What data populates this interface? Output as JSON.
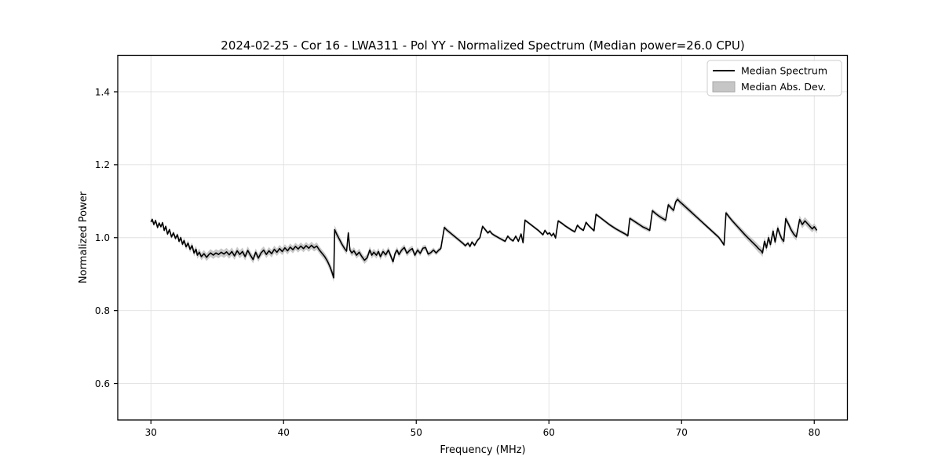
{
  "chart_data": {
    "type": "line",
    "title": "2024-02-25 - Cor 16 - LWA311 - Pol YY - Normalized Spectrum (Median power=26.0 CPU)",
    "xlabel": "Frequency (MHz)",
    "ylabel": "Normalized Power",
    "xlim": [
      27.5,
      82.5
    ],
    "ylim": [
      0.5,
      1.5
    ],
    "xticks": [
      30,
      40,
      50,
      60,
      70,
      80
    ],
    "yticks": [
      0.6,
      0.8,
      1.0,
      1.2,
      1.4
    ],
    "grid": true,
    "legend": {
      "position": "upper right",
      "entries": [
        {
          "label": "Median Spectrum",
          "type": "line",
          "color": "#000000"
        },
        {
          "label": "Median Abs. Dev.",
          "type": "patch",
          "color": "#c6c6c6"
        }
      ]
    },
    "colors": {
      "line": "#000000",
      "band": "#bfbfbf",
      "grid": "#e0e0e0",
      "spine": "#000000",
      "legend_border": "#cccccc"
    },
    "series_name": "Median Spectrum",
    "band_name": "Median Abs. Dev.",
    "points": [
      [
        30.0,
        1.043
      ],
      [
        30.1,
        1.05
      ],
      [
        30.22,
        1.036
      ],
      [
        30.35,
        1.047
      ],
      [
        30.5,
        1.028
      ],
      [
        30.62,
        1.04
      ],
      [
        30.75,
        1.03
      ],
      [
        30.88,
        1.041
      ],
      [
        31.0,
        1.02
      ],
      [
        31.12,
        1.031
      ],
      [
        31.25,
        1.01
      ],
      [
        31.4,
        1.022
      ],
      [
        31.55,
        1.002
      ],
      [
        31.7,
        1.013
      ],
      [
        31.85,
        0.998
      ],
      [
        32.0,
        1.008
      ],
      [
        32.12,
        0.99
      ],
      [
        32.25,
        1.0
      ],
      [
        32.38,
        0.982
      ],
      [
        32.5,
        0.992
      ],
      [
        32.65,
        0.975
      ],
      [
        32.8,
        0.985
      ],
      [
        32.95,
        0.968
      ],
      [
        33.1,
        0.978
      ],
      [
        33.25,
        0.958
      ],
      [
        33.4,
        0.968
      ],
      [
        33.5,
        0.952
      ],
      [
        33.65,
        0.96
      ],
      [
        33.8,
        0.948
      ],
      [
        34.0,
        0.956
      ],
      [
        34.2,
        0.946
      ],
      [
        34.35,
        0.953
      ],
      [
        34.5,
        0.958
      ],
      [
        34.7,
        0.952
      ],
      [
        34.9,
        0.958
      ],
      [
        35.1,
        0.954
      ],
      [
        35.3,
        0.96
      ],
      [
        35.5,
        0.955
      ],
      [
        35.7,
        0.961
      ],
      [
        35.9,
        0.953
      ],
      [
        36.1,
        0.962
      ],
      [
        36.3,
        0.95
      ],
      [
        36.5,
        0.964
      ],
      [
        36.7,
        0.954
      ],
      [
        36.9,
        0.962
      ],
      [
        37.1,
        0.948
      ],
      [
        37.3,
        0.965
      ],
      [
        37.5,
        0.952
      ],
      [
        37.7,
        0.94
      ],
      [
        37.9,
        0.96
      ],
      [
        38.1,
        0.944
      ],
      [
        38.3,
        0.958
      ],
      [
        38.5,
        0.966
      ],
      [
        38.7,
        0.954
      ],
      [
        38.9,
        0.964
      ],
      [
        39.1,
        0.956
      ],
      [
        39.3,
        0.968
      ],
      [
        39.5,
        0.96
      ],
      [
        39.7,
        0.97
      ],
      [
        39.9,
        0.962
      ],
      [
        40.1,
        0.972
      ],
      [
        40.3,
        0.964
      ],
      [
        40.5,
        0.974
      ],
      [
        40.7,
        0.967
      ],
      [
        40.9,
        0.976
      ],
      [
        41.1,
        0.969
      ],
      [
        41.3,
        0.977
      ],
      [
        41.5,
        0.97
      ],
      [
        41.7,
        0.978
      ],
      [
        41.9,
        0.971
      ],
      [
        42.1,
        0.979
      ],
      [
        42.3,
        0.972
      ],
      [
        42.5,
        0.977
      ],
      [
        42.7,
        0.966
      ],
      [
        42.9,
        0.957
      ],
      [
        43.1,
        0.948
      ],
      [
        43.3,
        0.936
      ],
      [
        43.5,
        0.92
      ],
      [
        43.65,
        0.905
      ],
      [
        43.78,
        0.89
      ],
      [
        43.85,
        1.022
      ],
      [
        44.0,
        1.01
      ],
      [
        44.2,
        0.996
      ],
      [
        44.4,
        0.982
      ],
      [
        44.6,
        0.97
      ],
      [
        44.75,
        0.963
      ],
      [
        44.88,
        1.013
      ],
      [
        45.0,
        0.966
      ],
      [
        45.15,
        0.958
      ],
      [
        45.3,
        0.964
      ],
      [
        45.5,
        0.952
      ],
      [
        45.7,
        0.96
      ],
      [
        45.9,
        0.948
      ],
      [
        46.1,
        0.938
      ],
      [
        46.3,
        0.945
      ],
      [
        46.5,
        0.966
      ],
      [
        46.65,
        0.952
      ],
      [
        46.8,
        0.96
      ],
      [
        47.0,
        0.952
      ],
      [
        47.15,
        0.962
      ],
      [
        47.3,
        0.948
      ],
      [
        47.5,
        0.962
      ],
      [
        47.7,
        0.953
      ],
      [
        47.9,
        0.966
      ],
      [
        48.1,
        0.948
      ],
      [
        48.25,
        0.934
      ],
      [
        48.4,
        0.956
      ],
      [
        48.55,
        0.966
      ],
      [
        48.7,
        0.954
      ],
      [
        48.9,
        0.966
      ],
      [
        49.1,
        0.973
      ],
      [
        49.3,
        0.957
      ],
      [
        49.5,
        0.965
      ],
      [
        49.7,
        0.97
      ],
      [
        49.9,
        0.952
      ],
      [
        50.1,
        0.966
      ],
      [
        50.3,
        0.957
      ],
      [
        50.5,
        0.971
      ],
      [
        50.7,
        0.973
      ],
      [
        50.9,
        0.955
      ],
      [
        51.1,
        0.959
      ],
      [
        51.3,
        0.966
      ],
      [
        51.5,
        0.958
      ],
      [
        51.7,
        0.966
      ],
      [
        51.85,
        0.97
      ],
      [
        52.0,
        1.002
      ],
      [
        52.12,
        1.028
      ],
      [
        52.3,
        1.021
      ],
      [
        52.5,
        1.015
      ],
      [
        52.7,
        1.009
      ],
      [
        52.9,
        1.003
      ],
      [
        53.1,
        0.997
      ],
      [
        53.3,
        0.991
      ],
      [
        53.5,
        0.985
      ],
      [
        53.7,
        0.978
      ],
      [
        53.9,
        0.985
      ],
      [
        54.05,
        0.976
      ],
      [
        54.2,
        0.988
      ],
      [
        54.4,
        0.979
      ],
      [
        54.6,
        0.992
      ],
      [
        54.8,
        1.0
      ],
      [
        55.0,
        1.031
      ],
      [
        55.2,
        1.022
      ],
      [
        55.4,
        1.013
      ],
      [
        55.55,
        1.018
      ],
      [
        55.7,
        1.011
      ],
      [
        55.9,
        1.006
      ],
      [
        56.1,
        1.002
      ],
      [
        56.3,
        0.998
      ],
      [
        56.5,
        0.994
      ],
      [
        56.7,
        0.99
      ],
      [
        56.9,
        1.004
      ],
      [
        57.1,
        0.996
      ],
      [
        57.3,
        0.991
      ],
      [
        57.5,
        1.004
      ],
      [
        57.7,
        0.99
      ],
      [
        57.9,
        1.01
      ],
      [
        58.05,
        0.986
      ],
      [
        58.2,
        1.048
      ],
      [
        58.45,
        1.041
      ],
      [
        58.7,
        1.034
      ],
      [
        58.95,
        1.027
      ],
      [
        59.2,
        1.02
      ],
      [
        59.4,
        1.013
      ],
      [
        59.55,
        1.008
      ],
      [
        59.7,
        1.02
      ],
      [
        59.9,
        1.01
      ],
      [
        60.05,
        1.013
      ],
      [
        60.2,
        1.005
      ],
      [
        60.35,
        1.012
      ],
      [
        60.5,
        0.999
      ],
      [
        60.7,
        1.046
      ],
      [
        60.95,
        1.04
      ],
      [
        61.2,
        1.033
      ],
      [
        61.45,
        1.027
      ],
      [
        61.7,
        1.021
      ],
      [
        61.95,
        1.016
      ],
      [
        62.15,
        1.034
      ],
      [
        62.35,
        1.026
      ],
      [
        62.6,
        1.02
      ],
      [
        62.8,
        1.042
      ],
      [
        63.0,
        1.033
      ],
      [
        63.2,
        1.026
      ],
      [
        63.4,
        1.019
      ],
      [
        63.55,
        1.064
      ],
      [
        63.8,
        1.057
      ],
      [
        64.05,
        1.05
      ],
      [
        64.3,
        1.043
      ],
      [
        64.55,
        1.036
      ],
      [
        64.8,
        1.03
      ],
      [
        65.05,
        1.024
      ],
      [
        65.3,
        1.019
      ],
      [
        65.55,
        1.014
      ],
      [
        65.8,
        1.009
      ],
      [
        65.95,
        1.005
      ],
      [
        66.1,
        1.053
      ],
      [
        66.35,
        1.047
      ],
      [
        66.6,
        1.041
      ],
      [
        66.85,
        1.035
      ],
      [
        67.1,
        1.029
      ],
      [
        67.35,
        1.025
      ],
      [
        67.6,
        1.02
      ],
      [
        67.8,
        1.074
      ],
      [
        68.05,
        1.066
      ],
      [
        68.3,
        1.059
      ],
      [
        68.55,
        1.053
      ],
      [
        68.8,
        1.048
      ],
      [
        69.0,
        1.09
      ],
      [
        69.2,
        1.082
      ],
      [
        69.4,
        1.075
      ],
      [
        69.55,
        1.098
      ],
      [
        69.7,
        1.105
      ],
      [
        69.85,
        1.099
      ],
      [
        70.1,
        1.091
      ],
      [
        70.4,
        1.081
      ],
      [
        70.7,
        1.071
      ],
      [
        71.0,
        1.061
      ],
      [
        71.3,
        1.051
      ],
      [
        71.6,
        1.041
      ],
      [
        71.9,
        1.031
      ],
      [
        72.2,
        1.021
      ],
      [
        72.5,
        1.011
      ],
      [
        72.8,
        1.001
      ],
      [
        73.0,
        0.991
      ],
      [
        73.2,
        0.98
      ],
      [
        73.35,
        1.068
      ],
      [
        73.6,
        1.056
      ],
      [
        73.85,
        1.045
      ],
      [
        74.1,
        1.035
      ],
      [
        74.35,
        1.025
      ],
      [
        74.6,
        1.015
      ],
      [
        74.85,
        1.005
      ],
      [
        75.1,
        0.996
      ],
      [
        75.35,
        0.987
      ],
      [
        75.6,
        0.978
      ],
      [
        75.8,
        0.97
      ],
      [
        76.0,
        0.964
      ],
      [
        76.1,
        0.958
      ],
      [
        76.25,
        0.99
      ],
      [
        76.4,
        0.972
      ],
      [
        76.55,
        1.0
      ],
      [
        76.7,
        0.981
      ],
      [
        76.9,
        1.018
      ],
      [
        77.05,
        0.988
      ],
      [
        77.25,
        1.026
      ],
      [
        77.4,
        1.01
      ],
      [
        77.55,
        0.997
      ],
      [
        77.7,
        0.99
      ],
      [
        77.85,
        1.052
      ],
      [
        78.05,
        1.038
      ],
      [
        78.25,
        1.022
      ],
      [
        78.45,
        1.01
      ],
      [
        78.65,
        1.002
      ],
      [
        78.9,
        1.05
      ],
      [
        79.1,
        1.036
      ],
      [
        79.3,
        1.046
      ],
      [
        79.5,
        1.038
      ],
      [
        79.7,
        1.03
      ],
      [
        79.85,
        1.024
      ],
      [
        80.0,
        1.03
      ],
      [
        80.2,
        1.02
      ]
    ],
    "band_halfwidth_breakpoints": [
      [
        30.0,
        0.005
      ],
      [
        32.0,
        0.006
      ],
      [
        33.5,
        0.01
      ],
      [
        36.0,
        0.011
      ],
      [
        40.0,
        0.01
      ],
      [
        43.0,
        0.01
      ],
      [
        43.8,
        0.012
      ],
      [
        44.5,
        0.009
      ],
      [
        46.0,
        0.01
      ],
      [
        50.0,
        0.008
      ],
      [
        52.0,
        0.006
      ],
      [
        54.0,
        0.005
      ],
      [
        58.0,
        0.004
      ],
      [
        63.0,
        0.004
      ],
      [
        66.0,
        0.005
      ],
      [
        69.0,
        0.007
      ],
      [
        70.0,
        0.008
      ],
      [
        72.0,
        0.005
      ],
      [
        73.5,
        0.006
      ],
      [
        76.0,
        0.011
      ],
      [
        78.0,
        0.009
      ],
      [
        79.0,
        0.011
      ],
      [
        80.2,
        0.009
      ]
    ]
  }
}
